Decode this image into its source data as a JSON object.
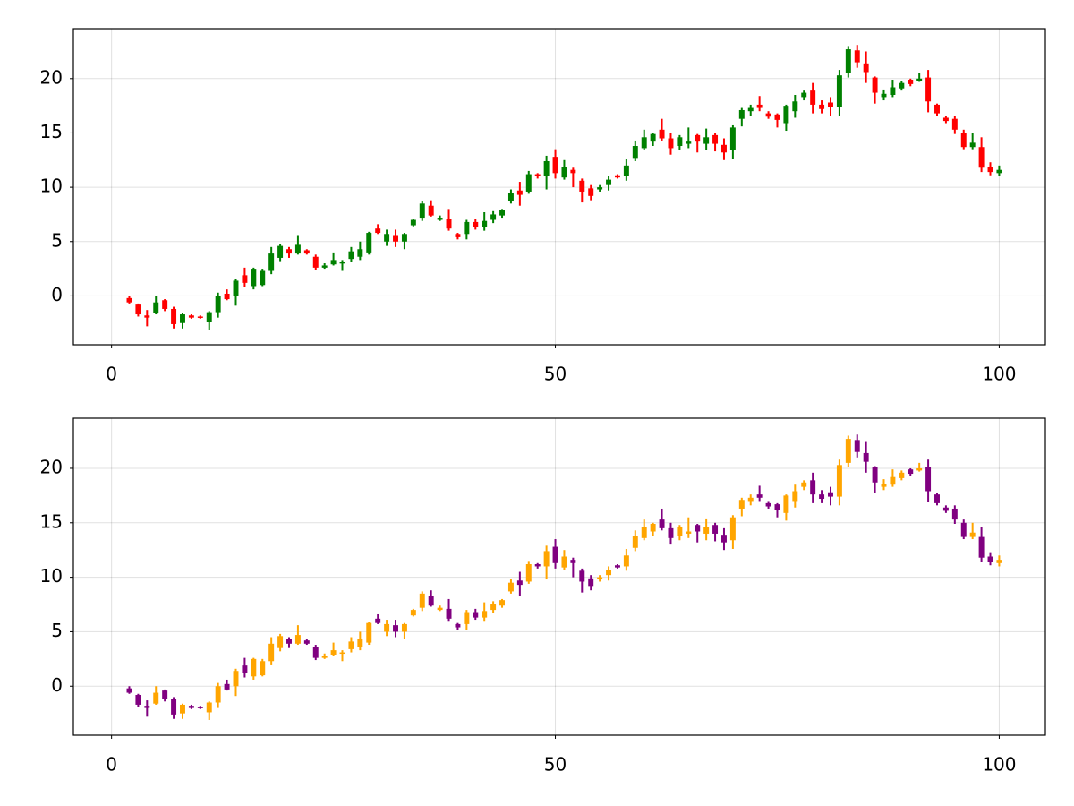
{
  "chart_data": [
    {
      "type": "candlestick",
      "up_color": "#008000",
      "down_color": "#ff0000",
      "x": [
        2,
        3,
        4,
        5,
        6,
        7,
        8,
        9,
        10,
        11,
        12,
        13,
        14,
        15,
        16,
        17,
        18,
        19,
        20,
        21,
        22,
        23,
        24,
        25,
        26,
        27,
        28,
        29,
        30,
        31,
        32,
        33,
        34,
        35,
        36,
        37,
        38,
        39,
        40,
        41,
        42,
        43,
        44,
        45,
        46,
        47,
        48,
        49,
        50,
        51,
        52,
        53,
        54,
        55,
        56,
        57,
        58,
        59,
        60,
        61,
        62,
        63,
        64,
        65,
        66,
        67,
        68,
        69,
        70,
        71,
        72,
        73,
        74,
        75,
        76,
        77,
        78,
        79,
        80,
        81,
        82,
        83,
        84,
        85,
        86,
        87,
        88,
        89,
        90,
        91,
        92,
        93,
        94,
        95,
        96,
        97,
        98,
        99,
        100
      ],
      "open": [
        -0.2,
        -0.8,
        -1.8,
        -1.6,
        -0.4,
        -1.2,
        -2.5,
        -1.8,
        -1.9,
        -2.4,
        -1.5,
        0.2,
        0,
        1.9,
        0.9,
        1.0,
        2.3,
        3.5,
        4.3,
        3.9,
        4.2,
        3.6,
        2.6,
        2.9,
        3.0,
        3.4,
        3.6,
        4.0,
        6.2,
        5.0,
        5.6,
        5.0,
        6.5,
        7.2,
        8.3,
        7.0,
        7.1,
        5.7,
        5.7,
        6.8,
        6.3,
        7.0,
        7.4,
        8.7,
        9.7,
        9.6,
        11.2,
        11.0,
        12.8,
        10.9,
        11.6,
        10.6,
        9.9,
        9.8,
        10.2,
        11.1,
        11.0,
        12.7,
        13.6,
        14.2,
        15.3,
        14.5,
        13.8,
        14.0,
        14.8,
        14.0,
        14.8,
        13.9,
        13.4,
        16.3,
        17.0,
        17.6,
        16.8,
        16.7,
        15.9,
        17.0,
        18.3,
        18.9,
        17.6,
        17.8,
        17.4,
        20.5,
        22.6,
        21.4,
        20.1,
        18.3,
        18.5,
        19.1,
        19.9,
        19.8,
        20.1,
        17.6,
        16.4,
        16.3,
        15.0,
        13.7,
        13.7,
        11.9,
        11.3
      ],
      "high": [
        0,
        -0.7,
        -1.3,
        0,
        -0.3,
        -1.0,
        -1.6,
        -1.7,
        -1.8,
        -1.4,
        0.3,
        0.6,
        1.6,
        2.6,
        2.6,
        2.5,
        4.5,
        4.8,
        4.5,
        5.6,
        4.3,
        3.8,
        3.0,
        4.0,
        3.3,
        4.5,
        5.0,
        5.9,
        6.6,
        6.1,
        6.1,
        5.8,
        7.1,
        8.7,
        8.8,
        7.4,
        8.0,
        5.8,
        7.0,
        7.1,
        7.7,
        7.8,
        8.0,
        9.8,
        10.5,
        11.5,
        11.3,
        12.9,
        13.5,
        12.5,
        11.8,
        10.8,
        10.2,
        10.2,
        11.0,
        11.2,
        12.6,
        14.3,
        15.3,
        15.0,
        16.3,
        15.0,
        14.8,
        15.5,
        14.9,
        15.4,
        15.0,
        14.5,
        15.7,
        17.3,
        17.6,
        18.4,
        17.0,
        16.8,
        17.6,
        18.5,
        18.9,
        19.6,
        18.0,
        18.3,
        20.8,
        23.0,
        23.1,
        22.5,
        20.2,
        19.0,
        19.9,
        19.8,
        20.0,
        20.5,
        20.8,
        17.7,
        16.6,
        16.6,
        15.3,
        15.0,
        14.6,
        12.3,
        12.0
      ],
      "low": [
        -0.7,
        -1.9,
        -2.8,
        -1.7,
        -1.4,
        -3.0,
        -3.0,
        -2.1,
        -2.1,
        -3.1,
        -2.0,
        -0.4,
        -0.9,
        0.8,
        0.6,
        0.9,
        2.0,
        3.2,
        3.5,
        3.8,
        3.8,
        2.4,
        2.5,
        2.8,
        2.3,
        3.1,
        3.3,
        3.8,
        5.7,
        4.6,
        4.5,
        4.3,
        6.4,
        6.9,
        7.3,
        6.9,
        6.0,
        5.2,
        5.2,
        6.1,
        6.0,
        6.7,
        7.2,
        8.5,
        8.3,
        9.4,
        10.8,
        9.8,
        10.8,
        10.7,
        10.0,
        8.6,
        8.8,
        9.6,
        9.7,
        10.8,
        10.6,
        12.4,
        13.4,
        13.8,
        14.3,
        13.0,
        13.4,
        13.6,
        13.2,
        13.4,
        13.3,
        12.5,
        12.6,
        15.6,
        16.6,
        17.0,
        16.3,
        15.5,
        15.2,
        16.4,
        18.0,
        16.8,
        16.8,
        16.6,
        16.6,
        20.1,
        21.0,
        19.6,
        17.7,
        18.0,
        18.3,
        18.9,
        19.3,
        19.7,
        16.9,
        16.6,
        15.9,
        14.9,
        13.5,
        13.5,
        11.4,
        11.1,
        11.0
      ],
      "close": [
        -0.6,
        -1.7,
        -2.0,
        -0.6,
        -1.2,
        -2.6,
        -1.7,
        -2.0,
        -2.0,
        -1.5,
        0,
        -0.3,
        1.4,
        1.2,
        2.5,
        2.3,
        3.9,
        4.6,
        3.9,
        4.7,
        3.9,
        2.6,
        2.8,
        3.3,
        3.1,
        4.1,
        4.3,
        5.8,
        5.8,
        5.7,
        5.0,
        5.7,
        7.0,
        8.5,
        7.4,
        7.2,
        6.2,
        5.4,
        6.8,
        6.3,
        6.9,
        7.5,
        7.9,
        9.5,
        9.3,
        11.2,
        11.0,
        12.4,
        11.3,
        11.9,
        11.3,
        9.6,
        9.2,
        10.0,
        10.7,
        10.9,
        12.0,
        13.8,
        14.6,
        14.9,
        14.5,
        13.6,
        14.6,
        14.2,
        14.2,
        14.6,
        14.0,
        13.2,
        15.5,
        17.1,
        17.3,
        17.3,
        16.5,
        16.2,
        17.5,
        17.9,
        18.7,
        17.6,
        17.2,
        17.4,
        20.3,
        22.7,
        21.5,
        20.6,
        18.7,
        18.6,
        19.2,
        19.6,
        19.5,
        20.0,
        17.9,
        16.8,
        16.1,
        15.3,
        13.7,
        14.1,
        11.8,
        11.4,
        11.6
      ],
      "xlim": [
        -4.3,
        105.2
      ],
      "ylim": [
        -4.5,
        24.6
      ],
      "xticks": [
        0,
        50,
        100
      ],
      "yticks": [
        0,
        5,
        10,
        15,
        20
      ],
      "grid": true
    },
    {
      "type": "candlestick",
      "up_color": "#ffa500",
      "down_color": "#800080",
      "x": [
        2,
        3,
        4,
        5,
        6,
        7,
        8,
        9,
        10,
        11,
        12,
        13,
        14,
        15,
        16,
        17,
        18,
        19,
        20,
        21,
        22,
        23,
        24,
        25,
        26,
        27,
        28,
        29,
        30,
        31,
        32,
        33,
        34,
        35,
        36,
        37,
        38,
        39,
        40,
        41,
        42,
        43,
        44,
        45,
        46,
        47,
        48,
        49,
        50,
        51,
        52,
        53,
        54,
        55,
        56,
        57,
        58,
        59,
        60,
        61,
        62,
        63,
        64,
        65,
        66,
        67,
        68,
        69,
        70,
        71,
        72,
        73,
        74,
        75,
        76,
        77,
        78,
        79,
        80,
        81,
        82,
        83,
        84,
        85,
        86,
        87,
        88,
        89,
        90,
        91,
        92,
        93,
        94,
        95,
        96,
        97,
        98,
        99,
        100
      ],
      "open": [
        -0.2,
        -0.8,
        -1.8,
        -1.6,
        -0.4,
        -1.2,
        -2.5,
        -1.8,
        -1.9,
        -2.4,
        -1.5,
        0.2,
        0,
        1.9,
        0.9,
        1.0,
        2.3,
        3.5,
        4.3,
        3.9,
        4.2,
        3.6,
        2.6,
        2.9,
        3.0,
        3.4,
        3.6,
        4.0,
        6.2,
        5.0,
        5.6,
        5.0,
        6.5,
        7.2,
        8.3,
        7.0,
        7.1,
        5.7,
        5.7,
        6.8,
        6.3,
        7.0,
        7.4,
        8.7,
        9.7,
        9.6,
        11.2,
        11.0,
        12.8,
        10.9,
        11.6,
        10.6,
        9.9,
        9.8,
        10.2,
        11.1,
        11.0,
        12.7,
        13.6,
        14.2,
        15.3,
        14.5,
        13.8,
        14.0,
        14.8,
        14.0,
        14.8,
        13.9,
        13.4,
        16.3,
        17.0,
        17.6,
        16.8,
        16.7,
        15.9,
        17.0,
        18.3,
        18.9,
        17.6,
        17.8,
        17.4,
        20.5,
        22.6,
        21.4,
        20.1,
        18.3,
        18.5,
        19.1,
        19.9,
        19.8,
        20.1,
        17.6,
        16.4,
        16.3,
        15.0,
        13.7,
        13.7,
        11.9,
        11.3
      ],
      "high": [
        0,
        -0.7,
        -1.3,
        0,
        -0.3,
        -1.0,
        -1.6,
        -1.7,
        -1.8,
        -1.4,
        0.3,
        0.6,
        1.6,
        2.6,
        2.6,
        2.5,
        4.5,
        4.8,
        4.5,
        5.6,
        4.3,
        3.8,
        3.0,
        4.0,
        3.3,
        4.5,
        5.0,
        5.9,
        6.6,
        6.1,
        6.1,
        5.8,
        7.1,
        8.7,
        8.8,
        7.4,
        8.0,
        5.8,
        7.0,
        7.1,
        7.7,
        7.8,
        8.0,
        9.8,
        10.5,
        11.5,
        11.3,
        12.9,
        13.5,
        12.5,
        11.8,
        10.8,
        10.2,
        10.2,
        11.0,
        11.2,
        12.6,
        14.3,
        15.3,
        15.0,
        16.3,
        15.0,
        14.8,
        15.5,
        14.9,
        15.4,
        15.0,
        14.5,
        15.7,
        17.3,
        17.6,
        18.4,
        17.0,
        16.8,
        17.6,
        18.5,
        18.9,
        19.6,
        18.0,
        18.3,
        20.8,
        23.0,
        23.1,
        22.5,
        20.2,
        19.0,
        19.9,
        19.8,
        20.0,
        20.5,
        20.8,
        17.7,
        16.6,
        16.6,
        15.3,
        15.0,
        14.6,
        12.3,
        12.0
      ],
      "low": [
        -0.7,
        -1.9,
        -2.8,
        -1.7,
        -1.4,
        -3.0,
        -3.0,
        -2.1,
        -2.1,
        -3.1,
        -2.0,
        -0.4,
        -0.9,
        0.8,
        0.6,
        0.9,
        2.0,
        3.2,
        3.5,
        3.8,
        3.8,
        2.4,
        2.5,
        2.8,
        2.3,
        3.1,
        3.3,
        3.8,
        5.7,
        4.6,
        4.5,
        4.3,
        6.4,
        6.9,
        7.3,
        6.9,
        6.0,
        5.2,
        5.2,
        6.1,
        6.0,
        6.7,
        7.2,
        8.5,
        8.3,
        9.4,
        10.8,
        9.8,
        10.8,
        10.7,
        10.0,
        8.6,
        8.8,
        9.6,
        9.7,
        10.8,
        10.6,
        12.4,
        13.4,
        13.8,
        14.3,
        13.0,
        13.4,
        13.6,
        13.2,
        13.4,
        13.3,
        12.5,
        12.6,
        15.6,
        16.6,
        17.0,
        16.3,
        15.5,
        15.2,
        16.4,
        18.0,
        16.8,
        16.8,
        16.6,
        16.6,
        20.1,
        21.0,
        19.6,
        17.7,
        18.0,
        18.3,
        18.9,
        19.3,
        19.7,
        16.9,
        16.6,
        15.9,
        14.9,
        13.5,
        13.5,
        11.4,
        11.1,
        11.0
      ],
      "close": [
        -0.6,
        -1.7,
        -2.0,
        -0.6,
        -1.2,
        -2.6,
        -1.7,
        -2.0,
        -2.0,
        -1.5,
        0,
        -0.3,
        1.4,
        1.2,
        2.5,
        2.3,
        3.9,
        4.6,
        3.9,
        4.7,
        3.9,
        2.6,
        2.8,
        3.3,
        3.1,
        4.1,
        4.3,
        5.8,
        5.8,
        5.7,
        5.0,
        5.7,
        7.0,
        8.5,
        7.4,
        7.2,
        6.2,
        5.4,
        6.8,
        6.3,
        6.9,
        7.5,
        7.9,
        9.5,
        9.3,
        11.2,
        11.0,
        12.4,
        11.3,
        11.9,
        11.3,
        9.6,
        9.2,
        10.0,
        10.7,
        10.9,
        12.0,
        13.8,
        14.6,
        14.9,
        14.5,
        13.6,
        14.6,
        14.2,
        14.2,
        14.6,
        14.0,
        13.2,
        15.5,
        17.1,
        17.3,
        17.3,
        16.5,
        16.2,
        17.5,
        17.9,
        18.7,
        17.6,
        17.2,
        17.4,
        20.3,
        22.7,
        21.5,
        20.6,
        18.7,
        18.6,
        19.2,
        19.6,
        19.5,
        20.0,
        17.9,
        16.8,
        16.1,
        15.3,
        13.7,
        14.1,
        11.8,
        11.4,
        11.6
      ],
      "xlim": [
        -4.3,
        105.2
      ],
      "ylim": [
        -4.5,
        24.6
      ],
      "xticks": [
        0,
        50,
        100
      ],
      "yticks": [
        0,
        5,
        10,
        15,
        20
      ],
      "grid": true
    }
  ]
}
